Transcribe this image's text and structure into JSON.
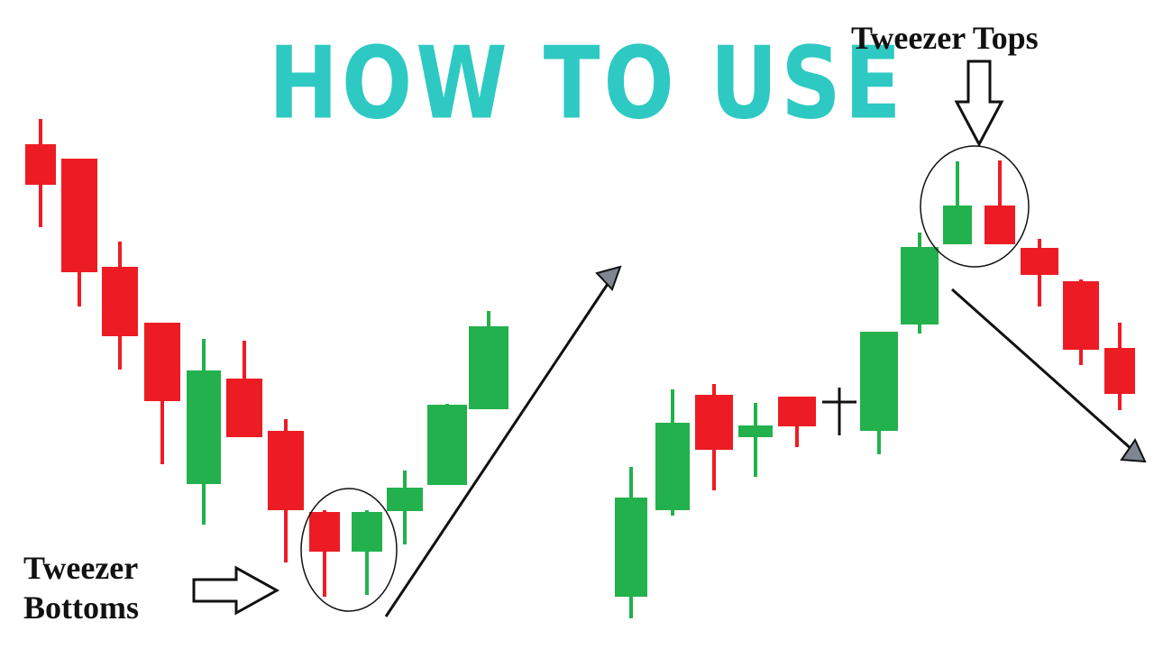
{
  "title": "HOW TO USE",
  "labels": {
    "bottoms_line1": "Tweezer",
    "bottoms_line2": "Bottoms",
    "tops": "Tweezer Tops"
  },
  "colors": {
    "title": "#2ec9c3",
    "bullish": "#22b14c",
    "bearish": "#ed1c24",
    "doji": "#111111",
    "arrow_head": "#7f8591",
    "ink": "#111111"
  },
  "candles": {
    "left": [
      {
        "type": "bearish"
      },
      {
        "type": "bearish"
      },
      {
        "type": "bearish"
      },
      {
        "type": "bearish"
      },
      {
        "type": "bullish"
      },
      {
        "type": "bearish"
      },
      {
        "type": "bearish"
      },
      {
        "type": "bearish"
      },
      {
        "type": "bullish"
      },
      {
        "type": "bullish"
      },
      {
        "type": "bullish"
      },
      {
        "type": "bullish"
      }
    ],
    "right": [
      {
        "type": "bullish"
      },
      {
        "type": "bullish"
      },
      {
        "type": "bearish"
      },
      {
        "type": "bullish"
      },
      {
        "type": "bearish"
      },
      {
        "type": "doji"
      },
      {
        "type": "bullish"
      },
      {
        "type": "bullish"
      },
      {
        "type": "bullish"
      },
      {
        "type": "bearish"
      },
      {
        "type": "bearish"
      },
      {
        "type": "bearish"
      },
      {
        "type": "bearish"
      }
    ]
  }
}
